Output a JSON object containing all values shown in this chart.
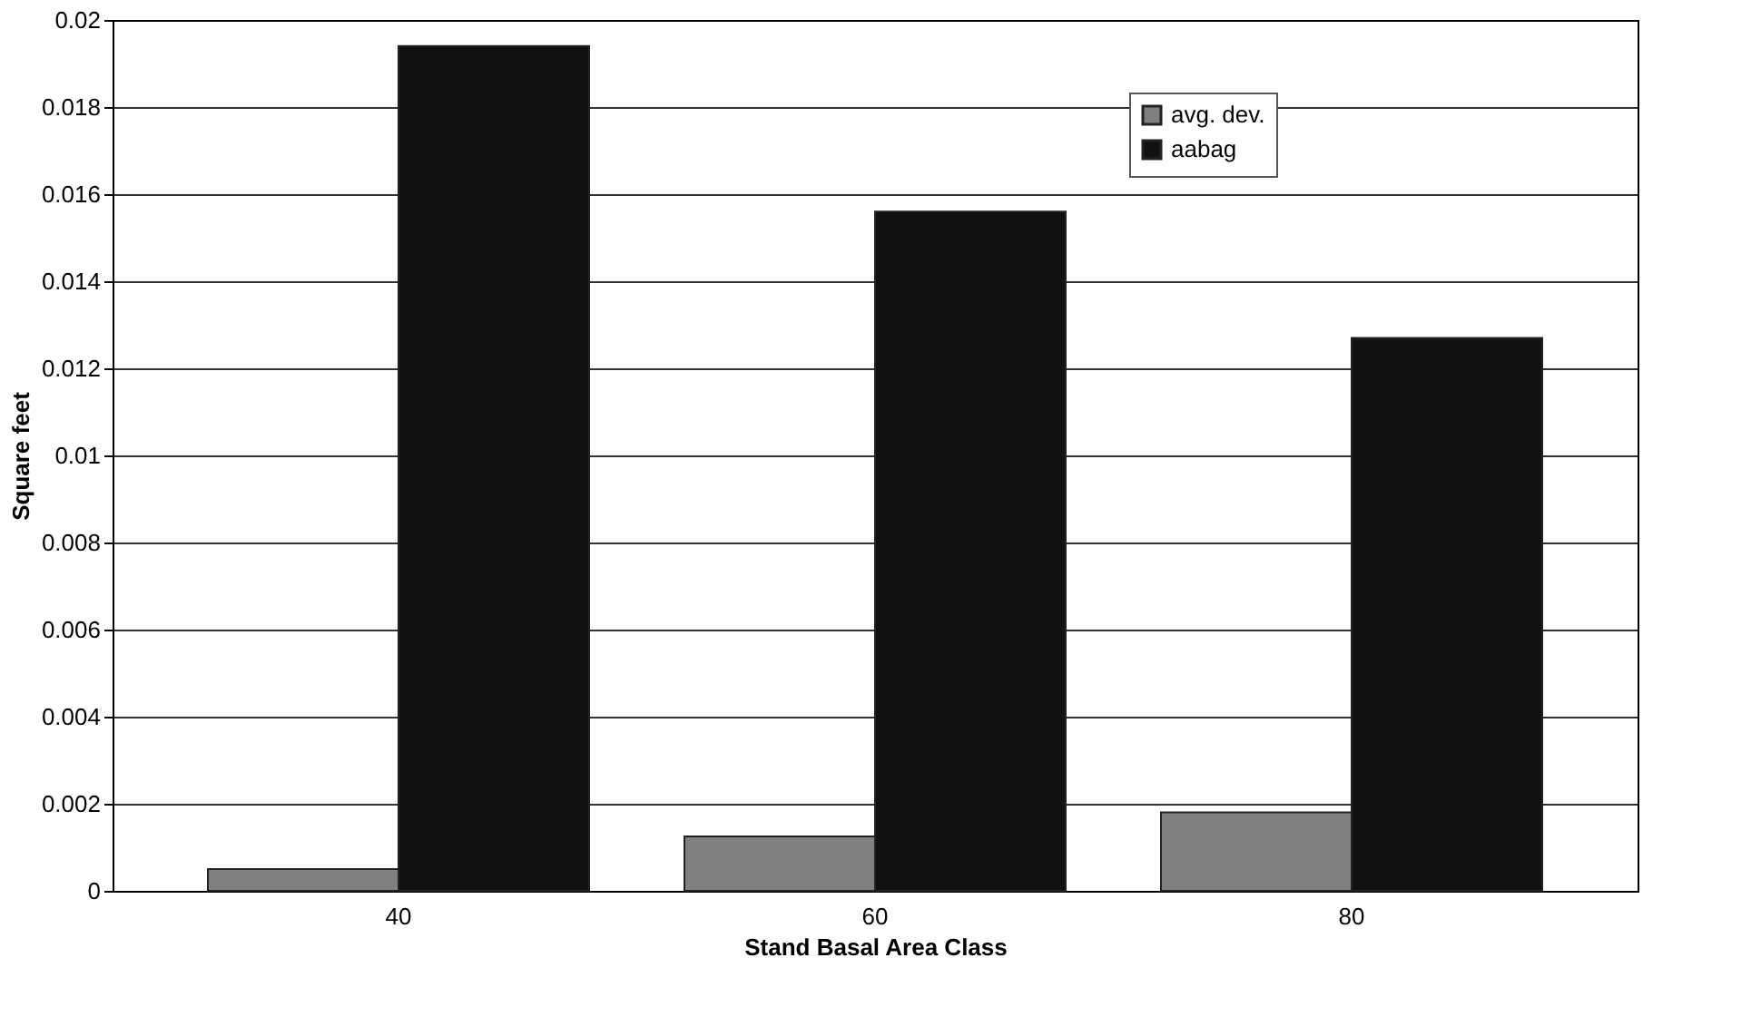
{
  "chart_data": {
    "type": "bar",
    "xlabel": "Stand Basal Area Class",
    "ylabel": "Square feet",
    "categories": [
      "40",
      "60",
      "80"
    ],
    "series": [
      {
        "name": "avg. dev.",
        "color": "#808080",
        "values": [
          0.0005,
          0.00125,
          0.0018
        ]
      },
      {
        "name": "aabag",
        "color": "#111111",
        "values": [
          0.0194,
          0.0156,
          0.0127
        ]
      }
    ],
    "ylim": [
      0,
      0.02
    ],
    "yticks": [
      0,
      0.002,
      0.004,
      0.006,
      0.008,
      0.01,
      0.012,
      0.014,
      0.016,
      0.018,
      0.02
    ],
    "grid": "y",
    "legend": "top right"
  }
}
